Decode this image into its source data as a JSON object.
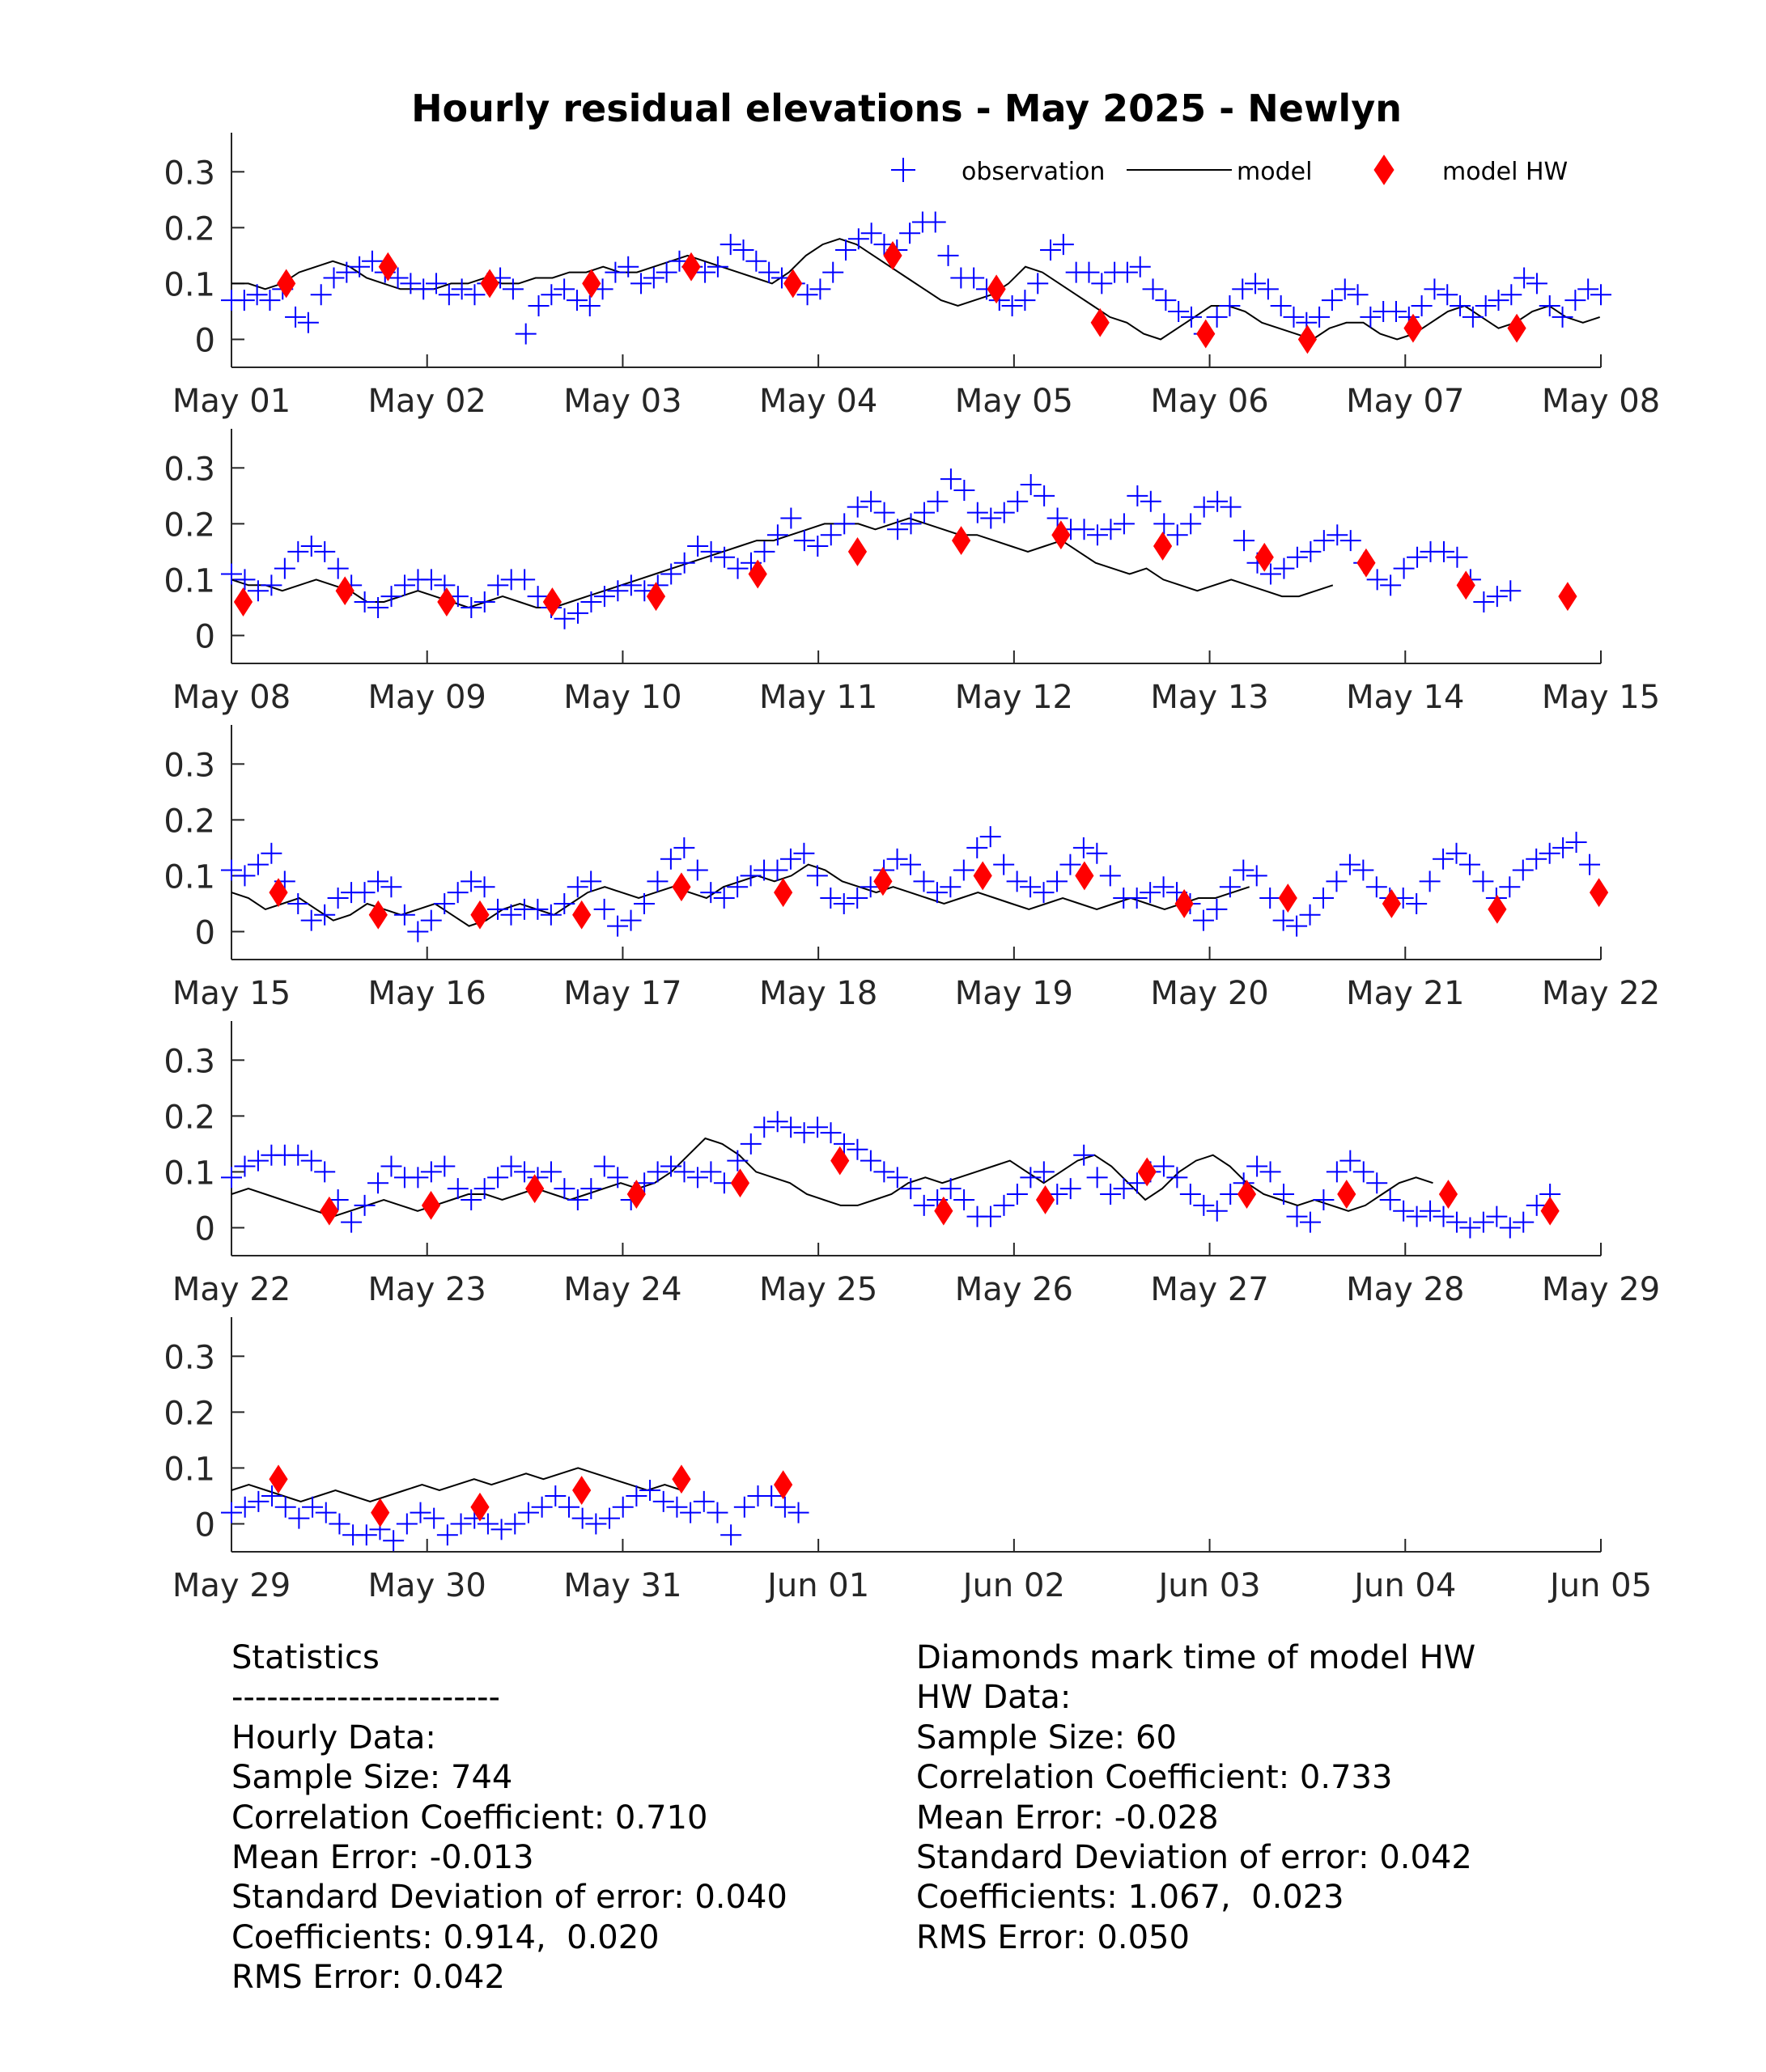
{
  "title": "Hourly residual elevations - May  2025 - Newlyn",
  "legend": {
    "observation": "observation",
    "model": "model",
    "model_hw": "model HW"
  },
  "colors": {
    "observation": "#0000ff",
    "model": "#000000",
    "model_hw": "#ff0000",
    "axis": "#262626"
  },
  "chart_data": {
    "type": "scatter",
    "ylim": [
      -0.05,
      0.37
    ],
    "yticks": [
      0,
      0.1,
      0.2,
      0.3
    ],
    "ytick_labels": [
      "0",
      "0.1",
      "0.2",
      "0.3"
    ],
    "grid": false,
    "legend_position": "top-right",
    "panels": [
      {
        "x_labels": [
          "May 01",
          "May 02",
          "May 03",
          "May 04",
          "May 05",
          "May 06",
          "May 07",
          "May 08"
        ],
        "observation": [
          0.07,
          0.07,
          0.08,
          0.07,
          0.09,
          0.04,
          0.03,
          0.08,
          0.11,
          0.12,
          0.13,
          0.14,
          0.12,
          0.11,
          0.1,
          0.09,
          0.1,
          0.08,
          0.09,
          0.08,
          0.1,
          0.11,
          0.09,
          0.01,
          0.06,
          0.08,
          0.09,
          0.07,
          0.06,
          0.09,
          0.12,
          0.13,
          0.1,
          0.11,
          0.12,
          0.14,
          0.13,
          0.12,
          0.13,
          0.17,
          0.16,
          0.14,
          0.12,
          0.11,
          0.1,
          0.08,
          0.09,
          0.12,
          0.16,
          0.18,
          0.19,
          0.17,
          0.16,
          0.19,
          0.21,
          0.21,
          0.15,
          0.11,
          0.11,
          0.09,
          0.07,
          0.06,
          0.07,
          0.1,
          0.16,
          0.17,
          0.12,
          0.12,
          0.1,
          0.12,
          0.12,
          0.13,
          0.09,
          0.07,
          0.05,
          0.04,
          0.01,
          0.04,
          0.06,
          0.09,
          0.1,
          0.09,
          0.06,
          0.04,
          0.03,
          0.04,
          0.07,
          0.09,
          0.08,
          0.04,
          0.05,
          0.05,
          0.04,
          0.06,
          0.09,
          0.08,
          0.06,
          0.04,
          0.06,
          0.07,
          0.08,
          0.11,
          0.1,
          0.06,
          0.04,
          0.07,
          0.09,
          0.08
        ],
        "model": [
          0.1,
          0.1,
          0.09,
          0.1,
          0.12,
          0.13,
          0.14,
          0.13,
          0.11,
          0.1,
          0.09,
          0.09,
          0.09,
          0.1,
          0.1,
          0.11,
          0.1,
          0.1,
          0.11,
          0.11,
          0.12,
          0.12,
          0.13,
          0.12,
          0.12,
          0.13,
          0.14,
          0.15,
          0.14,
          0.13,
          0.12,
          0.11,
          0.1,
          0.12,
          0.15,
          0.17,
          0.18,
          0.17,
          0.15,
          0.13,
          0.11,
          0.09,
          0.07,
          0.06,
          0.07,
          0.08,
          0.1,
          0.13,
          0.12,
          0.1,
          0.08,
          0.06,
          0.04,
          0.03,
          0.01,
          0.0,
          0.02,
          0.04,
          0.06,
          0.06,
          0.05,
          0.03,
          0.02,
          0.01,
          0.0,
          0.02,
          0.03,
          0.03,
          0.01,
          0.0,
          0.01,
          0.03,
          0.05,
          0.06,
          0.04,
          0.02,
          0.03,
          0.05,
          0.06,
          0.04,
          0.03,
          0.04
        ],
        "hw": [
          [
            0.28,
            0.1
          ],
          [
            0.8,
            0.13
          ],
          [
            1.32,
            0.1
          ],
          [
            1.84,
            0.1
          ],
          [
            2.35,
            0.13
          ],
          [
            2.87,
            0.1
          ],
          [
            3.38,
            0.15
          ],
          [
            3.91,
            0.09
          ],
          [
            4.44,
            0.03
          ],
          [
            4.98,
            0.01
          ],
          [
            5.5,
            0.0
          ],
          [
            6.04,
            0.02
          ],
          [
            6.57,
            0.02
          ]
        ]
      },
      {
        "x_labels": [
          "May 08",
          "May 09",
          "May 10",
          "May 11",
          "May 12",
          "May 13",
          "May 14",
          "May 15"
        ],
        "observation": [
          0.11,
          0.1,
          0.08,
          0.09,
          0.12,
          0.15,
          0.16,
          0.15,
          0.12,
          0.09,
          0.06,
          0.05,
          0.07,
          0.09,
          0.1,
          0.1,
          0.09,
          0.07,
          0.05,
          0.06,
          0.09,
          0.1,
          0.1,
          0.07,
          0.05,
          0.03,
          0.04,
          0.06,
          0.07,
          0.08,
          0.09,
          0.08,
          0.09,
          0.11,
          0.13,
          0.16,
          0.15,
          0.14,
          0.12,
          0.13,
          0.15,
          0.18,
          0.21,
          0.17,
          0.16,
          0.18,
          0.2,
          0.23,
          0.24,
          0.22,
          0.19,
          0.2,
          0.22,
          0.24,
          0.28,
          0.26,
          0.22,
          0.21,
          0.22,
          0.24,
          0.27,
          0.25,
          0.21,
          0.19,
          0.19,
          0.18,
          0.19,
          0.2,
          0.25,
          0.24,
          0.2,
          0.18,
          0.2,
          0.23,
          0.24,
          0.23,
          0.17,
          0.13,
          0.11,
          0.12,
          0.14,
          0.15,
          0.17,
          0.18,
          0.17,
          0.13,
          0.1,
          0.09,
          0.12,
          0.14,
          0.15,
          0.15,
          0.14,
          0.1,
          0.06,
          0.07,
          0.08
        ],
        "model": [
          0.1,
          0.09,
          0.09,
          0.08,
          0.09,
          0.1,
          0.09,
          0.08,
          0.06,
          0.06,
          0.07,
          0.08,
          0.07,
          0.06,
          0.05,
          0.06,
          0.07,
          0.06,
          0.05,
          0.05,
          0.06,
          0.07,
          0.08,
          0.09,
          0.1,
          0.11,
          0.12,
          0.13,
          0.14,
          0.15,
          0.16,
          0.17,
          0.17,
          0.18,
          0.19,
          0.2,
          0.2,
          0.2,
          0.19,
          0.2,
          0.21,
          0.2,
          0.19,
          0.18,
          0.18,
          0.17,
          0.16,
          0.15,
          0.16,
          0.17,
          0.15,
          0.13,
          0.12,
          0.11,
          0.12,
          0.1,
          0.09,
          0.08,
          0.09,
          0.1,
          0.09,
          0.08,
          0.07,
          0.07,
          0.08,
          0.09
        ],
        "hw": [
          [
            0.06,
            0.06
          ],
          [
            0.58,
            0.08
          ],
          [
            1.1,
            0.06
          ],
          [
            1.64,
            0.06
          ],
          [
            2.17,
            0.07
          ],
          [
            2.69,
            0.11
          ],
          [
            3.2,
            0.15
          ],
          [
            3.73,
            0.17
          ],
          [
            4.24,
            0.18
          ],
          [
            4.76,
            0.16
          ],
          [
            5.28,
            0.14
          ],
          [
            5.8,
            0.13
          ],
          [
            6.31,
            0.09
          ],
          [
            6.83,
            0.07
          ]
        ]
      },
      {
        "x_labels": [
          "May 15",
          "May 16",
          "May 17",
          "May 18",
          "May 19",
          "May 20",
          "May 21",
          "May 22"
        ],
        "observation": [
          0.11,
          0.1,
          0.12,
          0.14,
          0.09,
          0.05,
          0.02,
          0.03,
          0.06,
          0.07,
          0.07,
          0.09,
          0.08,
          0.03,
          0.0,
          0.02,
          0.05,
          0.07,
          0.09,
          0.08,
          0.04,
          0.03,
          0.04,
          0.04,
          0.03,
          0.05,
          0.08,
          0.09,
          0.04,
          0.01,
          0.02,
          0.05,
          0.09,
          0.13,
          0.15,
          0.11,
          0.07,
          0.06,
          0.08,
          0.1,
          0.11,
          0.11,
          0.13,
          0.14,
          0.1,
          0.06,
          0.05,
          0.06,
          0.08,
          0.11,
          0.13,
          0.12,
          0.09,
          0.07,
          0.08,
          0.11,
          0.15,
          0.17,
          0.12,
          0.09,
          0.08,
          0.07,
          0.09,
          0.12,
          0.15,
          0.14,
          0.1,
          0.06,
          0.06,
          0.07,
          0.08,
          0.07,
          0.05,
          0.02,
          0.04,
          0.08,
          0.11,
          0.1,
          0.06,
          0.02,
          0.01,
          0.03,
          0.06,
          0.09,
          0.12,
          0.11,
          0.08,
          0.06,
          0.06,
          0.05,
          0.09,
          0.13,
          0.14,
          0.12,
          0.09,
          0.06,
          0.08,
          0.11,
          0.13,
          0.14,
          0.15,
          0.16,
          0.12
        ],
        "model": [
          0.07,
          0.06,
          0.04,
          0.05,
          0.06,
          0.04,
          0.02,
          0.03,
          0.05,
          0.04,
          0.03,
          0.04,
          0.05,
          0.03,
          0.01,
          0.02,
          0.04,
          0.05,
          0.04,
          0.03,
          0.05,
          0.07,
          0.08,
          0.07,
          0.06,
          0.07,
          0.08,
          0.07,
          0.06,
          0.08,
          0.09,
          0.1,
          0.09,
          0.1,
          0.12,
          0.11,
          0.09,
          0.08,
          0.07,
          0.08,
          0.07,
          0.06,
          0.05,
          0.06,
          0.07,
          0.06,
          0.05,
          0.04,
          0.05,
          0.06,
          0.05,
          0.04,
          0.05,
          0.06,
          0.05,
          0.04,
          0.05,
          0.06,
          0.06,
          0.07,
          0.08
        ],
        "hw": [
          [
            0.24,
            0.07
          ],
          [
            0.75,
            0.03
          ],
          [
            1.27,
            0.03
          ],
          [
            1.79,
            0.03
          ],
          [
            2.3,
            0.08
          ],
          [
            2.82,
            0.07
          ],
          [
            3.33,
            0.09
          ],
          [
            3.84,
            0.1
          ],
          [
            4.36,
            0.1
          ],
          [
            4.87,
            0.05
          ],
          [
            5.4,
            0.06
          ],
          [
            5.93,
            0.05
          ],
          [
            6.47,
            0.04
          ],
          [
            6.99,
            0.07
          ]
        ]
      },
      {
        "x_labels": [
          "May 22",
          "May 23",
          "May 24",
          "May 25",
          "May 26",
          "May 27",
          "May 28",
          "May 29"
        ],
        "observation": [
          0.09,
          0.11,
          0.12,
          0.13,
          0.13,
          0.13,
          0.12,
          0.1,
          0.05,
          0.01,
          0.04,
          0.08,
          0.11,
          0.09,
          0.09,
          0.1,
          0.11,
          0.07,
          0.05,
          0.07,
          0.09,
          0.11,
          0.1,
          0.09,
          0.1,
          0.07,
          0.05,
          0.07,
          0.11,
          0.09,
          0.05,
          0.08,
          0.1,
          0.11,
          0.1,
          0.09,
          0.1,
          0.08,
          0.12,
          0.15,
          0.18,
          0.19,
          0.18,
          0.17,
          0.18,
          0.17,
          0.15,
          0.14,
          0.12,
          0.1,
          0.09,
          0.07,
          0.04,
          0.05,
          0.07,
          0.05,
          0.02,
          0.02,
          0.04,
          0.06,
          0.09,
          0.1,
          0.06,
          0.07,
          0.13,
          0.09,
          0.06,
          0.07,
          0.08,
          0.1,
          0.11,
          0.09,
          0.06,
          0.04,
          0.03,
          0.06,
          0.08,
          0.11,
          0.1,
          0.06,
          0.02,
          0.01,
          0.05,
          0.1,
          0.12,
          0.1,
          0.08,
          0.05,
          0.03,
          0.02,
          0.03,
          0.02,
          0.01,
          0.0,
          0.01,
          0.02,
          0.0,
          0.01,
          0.04,
          0.06
        ],
        "model": [
          0.06,
          0.07,
          0.06,
          0.05,
          0.04,
          0.03,
          0.02,
          0.03,
          0.04,
          0.05,
          0.04,
          0.03,
          0.04,
          0.05,
          0.06,
          0.06,
          0.05,
          0.06,
          0.07,
          0.06,
          0.05,
          0.06,
          0.07,
          0.08,
          0.07,
          0.08,
          0.1,
          0.13,
          0.16,
          0.15,
          0.13,
          0.1,
          0.09,
          0.08,
          0.06,
          0.05,
          0.04,
          0.04,
          0.05,
          0.06,
          0.08,
          0.09,
          0.08,
          0.09,
          0.1,
          0.11,
          0.12,
          0.1,
          0.08,
          0.1,
          0.12,
          0.13,
          0.11,
          0.08,
          0.05,
          0.07,
          0.1,
          0.12,
          0.13,
          0.11,
          0.08,
          0.06,
          0.05,
          0.04,
          0.05,
          0.04,
          0.03,
          0.04,
          0.06,
          0.08,
          0.09,
          0.08
        ],
        "hw": [
          [
            0.5,
            0.03
          ],
          [
            1.02,
            0.04
          ],
          [
            1.55,
            0.07
          ],
          [
            2.07,
            0.06
          ],
          [
            2.6,
            0.08
          ],
          [
            3.11,
            0.12
          ],
          [
            3.64,
            0.03
          ],
          [
            4.16,
            0.05
          ],
          [
            4.68,
            0.1
          ],
          [
            5.19,
            0.06
          ],
          [
            5.7,
            0.06
          ],
          [
            6.22,
            0.06
          ],
          [
            6.74,
            0.03
          ]
        ]
      },
      {
        "x_labels": [
          "May 29",
          "May 30",
          "May 31",
          "Jun 01",
          "Jun 02",
          "Jun 03",
          "Jun 04",
          "Jun 05"
        ],
        "observation": [
          0.02,
          0.03,
          0.04,
          0.05,
          0.03,
          0.01,
          0.03,
          0.02,
          0.0,
          -0.02,
          -0.02,
          -0.01,
          -0.03,
          0.0,
          0.02,
          0.01,
          -0.02,
          0.0,
          0.01,
          0.0,
          -0.01,
          0.0,
          0.02,
          0.03,
          0.05,
          0.03,
          0.01,
          0.0,
          0.01,
          0.03,
          0.05,
          0.06,
          0.04,
          0.03,
          0.02,
          0.04,
          0.02,
          -0.02,
          0.03,
          0.05,
          0.05,
          0.03,
          0.02
        ],
        "model": [
          0.06,
          0.07,
          0.06,
          0.05,
          0.04,
          0.05,
          0.06,
          0.05,
          0.04,
          0.05,
          0.06,
          0.07,
          0.06,
          0.07,
          0.08,
          0.07,
          0.08,
          0.09,
          0.08,
          0.09,
          0.1,
          0.09,
          0.08,
          0.07,
          0.06,
          0.07,
          0.06
        ],
        "hw": [
          [
            0.24,
            0.08
          ],
          [
            0.76,
            0.02
          ],
          [
            1.27,
            0.03
          ],
          [
            1.79,
            0.06
          ],
          [
            2.3,
            0.08
          ],
          [
            2.82,
            0.07
          ]
        ]
      }
    ]
  },
  "stats": {
    "left": [
      "Statistics",
      "-----------------------",
      "Hourly Data:",
      "Sample Size: 744",
      "Correlation Coefficient: 0.710",
      "Mean Error: -0.013",
      "Standard Deviation of error: 0.040",
      "Coefficients: 0.914,  0.020",
      "RMS Error: 0.042"
    ],
    "right": [
      "Diamonds mark time of model HW",
      "",
      "HW Data:",
      "Sample Size: 60",
      "Correlation Coefficient: 0.733",
      "Mean Error: -0.028",
      "Standard Deviation of error: 0.042",
      "Coefficients: 1.067,  0.023",
      "RMS Error: 0.050"
    ]
  }
}
